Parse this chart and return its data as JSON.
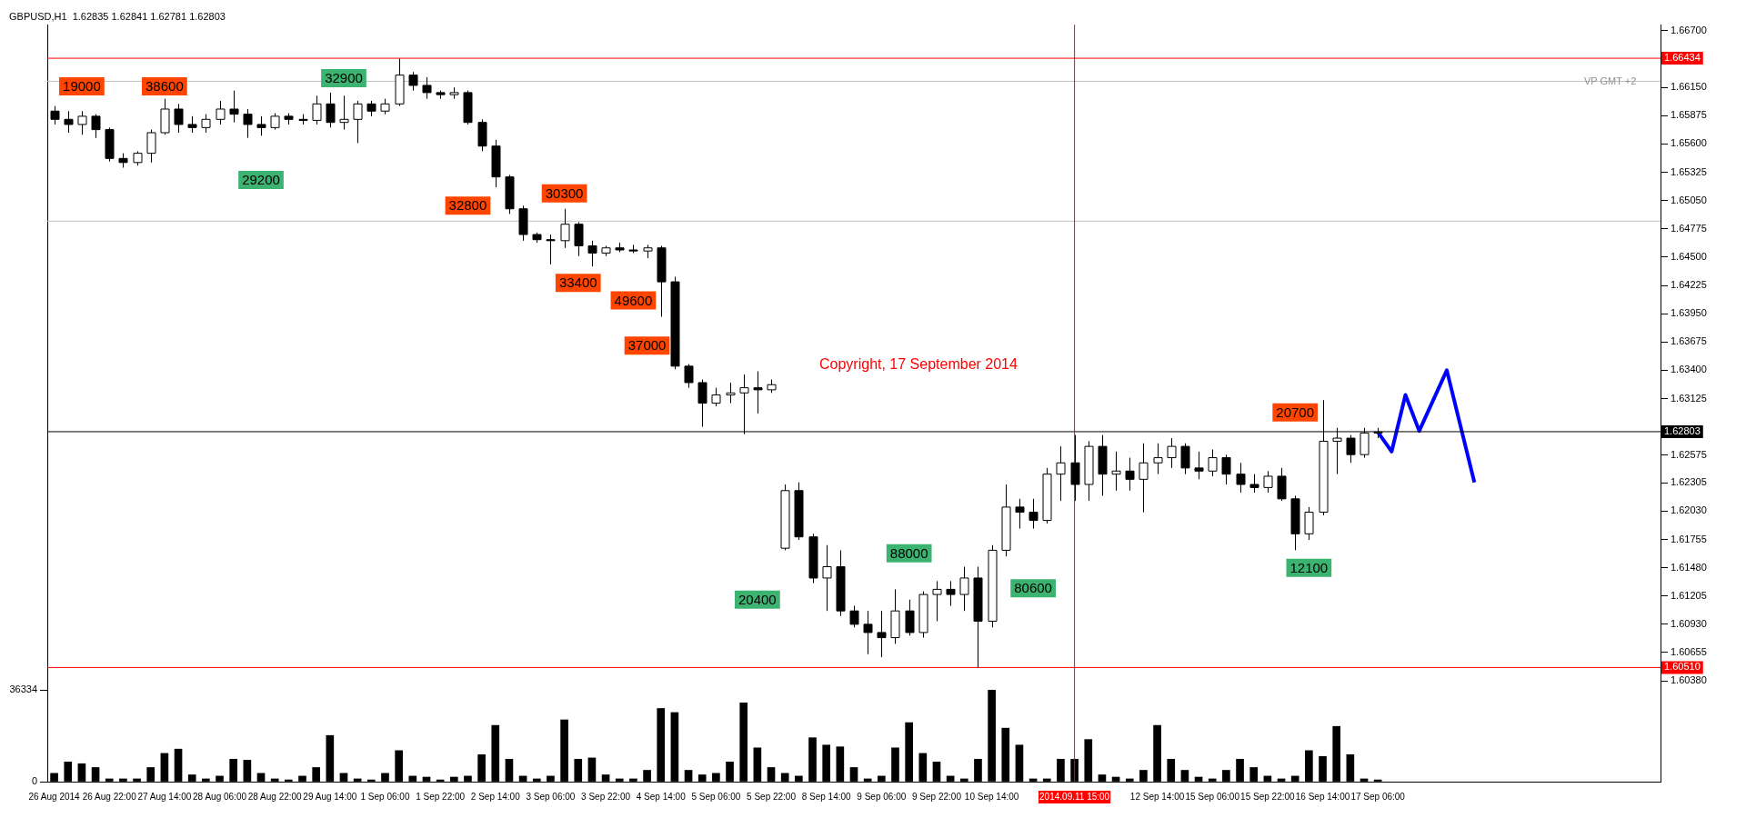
{
  "chart_data": {
    "type": "candlestick",
    "title": "GBPUSD,H1  1.62835 1.62841 1.62781 1.62803",
    "categories": [
      "26 Aug 2014",
      null,
      null,
      null,
      "26 Aug 22:00",
      null,
      null,
      null,
      "27 Aug 14:00",
      null,
      null,
      null,
      "28 Aug 06:00",
      null,
      null,
      null,
      "28 Aug 22:00",
      null,
      null,
      null,
      "29 Aug 14:00",
      null,
      null,
      null,
      "1 Sep 06:00",
      null,
      null,
      null,
      "1 Sep 22:00",
      null,
      null,
      null,
      "2 Sep 14:00",
      null,
      null,
      null,
      "3 Sep 06:00",
      null,
      null,
      null,
      "3 Sep 22:00",
      null,
      null,
      null,
      "4 Sep 14:00",
      null,
      null,
      null,
      "5 Sep 06:00",
      null,
      null,
      null,
      "5 Sep 22:00",
      null,
      null,
      null,
      "8 Sep 14:00",
      null,
      null,
      null,
      "9 Sep 06:00",
      null,
      null,
      null,
      "9 Sep 22:00",
      null,
      null,
      null,
      "10 Sep 14:00",
      null,
      null,
      null,
      null,
      null,
      "2014.09.11 15:00",
      null,
      null,
      null,
      null,
      null,
      "12 Sep 14:00",
      null,
      null,
      null,
      "15 Sep 06:00",
      null,
      null,
      null,
      "15 Sep 22:00",
      null,
      null,
      null,
      "16 Sep 14:00",
      null,
      null,
      null,
      "17 Sep 06:00",
      null,
      null,
      null,
      null,
      null,
      null,
      null,
      null,
      null,
      null,
      null,
      null,
      null,
      null,
      null,
      null,
      null,
      null,
      null,
      null
    ],
    "ohlc": [
      [
        1.6592,
        1.6597,
        1.6579,
        1.6584
      ],
      [
        1.6584,
        1.6592,
        1.6571,
        1.6579
      ],
      [
        1.6579,
        1.6592,
        1.6569,
        1.6587
      ],
      [
        1.6587,
        1.6589,
        1.6566,
        1.6574
      ],
      [
        1.6574,
        1.6576,
        1.6543,
        1.6546
      ],
      [
        1.6546,
        1.6551,
        1.6537,
        1.6542
      ],
      [
        1.6542,
        1.6553,
        1.6539,
        1.6551
      ],
      [
        1.6551,
        1.6574,
        1.6542,
        1.6571
      ],
      [
        1.6571,
        1.6604,
        1.6569,
        1.6594
      ],
      [
        1.6594,
        1.6599,
        1.6571,
        1.6579
      ],
      [
        1.6579,
        1.6587,
        1.6571,
        1.6576
      ],
      [
        1.6576,
        1.6589,
        1.6571,
        1.6584
      ],
      [
        1.6584,
        1.6602,
        1.6579,
        1.6594
      ],
      [
        1.6594,
        1.6612,
        1.6581,
        1.6589
      ],
      [
        1.6589,
        1.6594,
        1.6566,
        1.6579
      ],
      [
        1.6579,
        1.6587,
        1.6568,
        1.6576
      ],
      [
        1.6576,
        1.659,
        1.6574,
        1.6587
      ],
      [
        1.6587,
        1.659,
        1.6579,
        1.6584
      ],
      [
        1.6584,
        1.6589,
        1.6579,
        1.6583
      ],
      [
        1.6583,
        1.6607,
        1.6579,
        1.6599
      ],
      [
        1.6599,
        1.661,
        1.6576,
        1.6581
      ],
      [
        1.6581,
        1.6607,
        1.6574,
        1.6584
      ],
      [
        1.6584,
        1.6602,
        1.6561,
        1.6599
      ],
      [
        1.6599,
        1.6602,
        1.6587,
        1.6592
      ],
      [
        1.6592,
        1.6604,
        1.6589,
        1.6599
      ],
      [
        1.6599,
        1.6643,
        1.6597,
        1.6627
      ],
      [
        1.6627,
        1.663,
        1.6612,
        1.6617
      ],
      [
        1.6617,
        1.6625,
        1.6604,
        1.661
      ],
      [
        1.661,
        1.6612,
        1.6604,
        1.6608
      ],
      [
        1.6608,
        1.6615,
        1.6604,
        1.661
      ],
      [
        1.661,
        1.6612,
        1.6579,
        1.6581
      ],
      [
        1.6581,
        1.6584,
        1.6553,
        1.6558
      ],
      [
        1.6558,
        1.6564,
        1.6518,
        1.6528
      ],
      [
        1.6528,
        1.653,
        1.6492,
        1.6497
      ],
      [
        1.6497,
        1.65,
        1.6466,
        1.6472
      ],
      [
        1.6472,
        1.6474,
        1.6464,
        1.6467
      ],
      [
        1.6467,
        1.6472,
        1.6443,
        1.6466
      ],
      [
        1.6466,
        1.6497,
        1.6459,
        1.6482
      ],
      [
        1.6482,
        1.6484,
        1.6451,
        1.6461
      ],
      [
        1.6461,
        1.6466,
        1.6441,
        1.6454
      ],
      [
        1.6454,
        1.6461,
        1.6451,
        1.6459
      ],
      [
        1.6459,
        1.6464,
        1.6455,
        1.6457
      ],
      [
        1.6457,
        1.6462,
        1.6454,
        1.6456
      ],
      [
        1.6456,
        1.6462,
        1.6449,
        1.6459
      ],
      [
        1.6459,
        1.6461,
        1.6392,
        1.6426
      ],
      [
        1.6426,
        1.6431,
        1.6341,
        1.6344
      ],
      [
        1.6344,
        1.6346,
        1.6323,
        1.6328
      ],
      [
        1.6328,
        1.6331,
        1.6285,
        1.6308
      ],
      [
        1.6308,
        1.6323,
        1.6305,
        1.6316
      ],
      [
        1.6316,
        1.6328,
        1.6308,
        1.6318
      ],
      [
        1.6318,
        1.6336,
        1.6278,
        1.6323
      ],
      [
        1.6323,
        1.6339,
        1.6298,
        1.6321
      ],
      [
        1.6321,
        1.6331,
        1.6318,
        1.6326
      ],
      [
        1.6167,
        1.6229,
        1.6165,
        1.6223
      ],
      [
        1.6223,
        1.6231,
        1.6175,
        1.6178
      ],
      [
        1.6178,
        1.6181,
        1.6133,
        1.6138
      ],
      [
        1.6138,
        1.617,
        1.6106,
        1.6149
      ],
      [
        1.6149,
        1.6165,
        1.6101,
        1.6106
      ],
      [
        1.6106,
        1.6111,
        1.609,
        1.6093
      ],
      [
        1.6093,
        1.6106,
        1.6064,
        1.6085
      ],
      [
        1.6085,
        1.6106,
        1.6061,
        1.608
      ],
      [
        1.608,
        1.6127,
        1.6074,
        1.6106
      ],
      [
        1.6106,
        1.6117,
        1.6082,
        1.6085
      ],
      [
        1.6085,
        1.6125,
        1.608,
        1.6122
      ],
      [
        1.6122,
        1.6135,
        1.6096,
        1.6127
      ],
      [
        1.6127,
        1.6135,
        1.6111,
        1.6122
      ],
      [
        1.6122,
        1.6149,
        1.6106,
        1.6138
      ],
      [
        1.6138,
        1.6149,
        1.6051,
        1.6096
      ],
      [
        1.6096,
        1.617,
        1.609,
        1.6165
      ],
      [
        1.6165,
        1.6229,
        1.6159,
        1.6207
      ],
      [
        1.6207,
        1.6215,
        1.6186,
        1.6202
      ],
      [
        1.6202,
        1.6215,
        1.6186,
        1.6194
      ],
      [
        1.6194,
        1.6245,
        1.6191,
        1.6239
      ],
      [
        1.6239,
        1.6266,
        1.6213,
        1.625
      ],
      [
        1.625,
        1.6277,
        1.6213,
        1.6229
      ],
      [
        1.6229,
        1.6271,
        1.6213,
        1.6266
      ],
      [
        1.6266,
        1.6277,
        1.6218,
        1.6239
      ],
      [
        1.6239,
        1.6261,
        1.6223,
        1.6242
      ],
      [
        1.6242,
        1.6255,
        1.6223,
        1.6234
      ],
      [
        1.6234,
        1.6269,
        1.6202,
        1.625
      ],
      [
        1.625,
        1.6269,
        1.6239,
        1.6255
      ],
      [
        1.6255,
        1.6274,
        1.6245,
        1.6266
      ],
      [
        1.6266,
        1.6269,
        1.6239,
        1.6245
      ],
      [
        1.6245,
        1.6261,
        1.6234,
        1.6242
      ],
      [
        1.6242,
        1.6263,
        1.6237,
        1.6255
      ],
      [
        1.6255,
        1.6258,
        1.6229,
        1.6239
      ],
      [
        1.6239,
        1.625,
        1.6221,
        1.6229
      ],
      [
        1.6229,
        1.6239,
        1.6221,
        1.6226
      ],
      [
        1.6226,
        1.6242,
        1.6221,
        1.6237
      ],
      [
        1.6237,
        1.6245,
        1.6213,
        1.6215
      ],
      [
        1.6215,
        1.6218,
        1.6165,
        1.6181
      ],
      [
        1.6181,
        1.6207,
        1.6175,
        1.6202
      ],
      [
        1.6202,
        1.6311,
        1.6199,
        1.6271
      ],
      [
        1.6271,
        1.6284,
        1.6239,
        1.6274
      ],
      [
        1.6274,
        1.6277,
        1.625,
        1.6258
      ],
      [
        1.6258,
        1.6284,
        1.6255,
        1.6279
      ],
      [
        1.6279,
        1.6284,
        1.6274,
        1.628
      ],
      null,
      null,
      null,
      null,
      null,
      null,
      null,
      null,
      null,
      null,
      null,
      null,
      null,
      null,
      null,
      null,
      null,
      null,
      null,
      null
    ],
    "series": [
      {
        "type": "line",
        "color": "#0000ff",
        "values": [
          null,
          null,
          null,
          null,
          null,
          null,
          null,
          null,
          null,
          null,
          null,
          null,
          null,
          null,
          null,
          null,
          null,
          null,
          null,
          null,
          null,
          null,
          null,
          null,
          null,
          null,
          null,
          null,
          null,
          null,
          null,
          null,
          null,
          null,
          null,
          null,
          null,
          null,
          null,
          null,
          null,
          null,
          null,
          null,
          null,
          null,
          null,
          null,
          null,
          null,
          null,
          null,
          null,
          null,
          null,
          null,
          null,
          null,
          null,
          null,
          null,
          null,
          null,
          null,
          null,
          null,
          null,
          null,
          null,
          null,
          null,
          null,
          null,
          null,
          null,
          null,
          null,
          null,
          null,
          null,
          null,
          null,
          null,
          null,
          null,
          null,
          null,
          null,
          null,
          null,
          null,
          null,
          null,
          null,
          null,
          null,
          1.628,
          1.6261,
          1.6316,
          1.6281,
          null,
          1.634,
          null,
          1.6231,
          null,
          null,
          null,
          null,
          null,
          null,
          null,
          null,
          null,
          null,
          null,
          null,
          null
        ]
      },
      {
        "type": "bar",
        "axis": "y2",
        "color": "#000000",
        "values": [
          3300,
          7800,
          7100,
          5600,
          1100,
          1100,
          1100,
          5600,
          11200,
          12900,
          2700,
          1100,
          2200,
          8900,
          8500,
          3300,
          1100,
          700,
          2200,
          5600,
          18300,
          3300,
          1100,
          700,
          3300,
          12300,
          2200,
          1800,
          700,
          1800,
          2200,
          10700,
          22300,
          8900,
          2200,
          1100,
          2200,
          24500,
          8900,
          9400,
          2700,
          1100,
          1100,
          4500,
          29000,
          27400,
          4500,
          2700,
          3300,
          7800,
          31200,
          13400,
          5600,
          3300,
          2200,
          17400,
          14500,
          13800,
          5600,
          1100,
          2200,
          13400,
          23400,
          11200,
          7800,
          2200,
          1100,
          8900,
          36300,
          21200,
          14500,
          1100,
          1100,
          8900,
          8900,
          16700,
          2700,
          1800,
          1100,
          4500,
          22300,
          8900,
          4500,
          1800,
          1100,
          4500,
          8900,
          5600,
          2200,
          1100,
          2200,
          12300,
          10000,
          21900,
          10700,
          1100,
          700,
          null,
          null,
          null,
          null,
          null,
          null,
          null,
          null,
          null,
          null,
          null,
          null,
          null,
          null,
          null,
          null,
          null,
          null,
          null,
          null
        ]
      }
    ],
    "ylim": [
      1.594,
      1.6676
    ],
    "yticks": [
      {
        "value": 1.667,
        "label": "1.66700"
      },
      {
        "value": 1.6615,
        "label": "1.66150"
      },
      {
        "value": 1.65875,
        "label": "1.65875"
      },
      {
        "value": 1.656,
        "label": "1.65600"
      },
      {
        "value": 1.65325,
        "label": "1.65325"
      },
      {
        "value": 1.6505,
        "label": "1.65050"
      },
      {
        "value": 1.64775,
        "label": "1.64775"
      },
      {
        "value": 1.645,
        "label": "1.64500"
      },
      {
        "value": 1.64225,
        "label": "1.64225"
      },
      {
        "value": 1.6395,
        "label": "1.63950"
      },
      {
        "value": 1.63675,
        "label": "1.63675"
      },
      {
        "value": 1.634,
        "label": "1.63400"
      },
      {
        "value": 1.63125,
        "label": "1.63125"
      },
      {
        "value": 1.62575,
        "label": "1.62575"
      },
      {
        "value": 1.62305,
        "label": "1.62305"
      },
      {
        "value": 1.6203,
        "label": "1.62030"
      },
      {
        "value": 1.61755,
        "label": "1.61755"
      },
      {
        "value": 1.6148,
        "label": "1.61480"
      },
      {
        "value": 1.61205,
        "label": "1.61205"
      },
      {
        "value": 1.6093,
        "label": "1.60930"
      },
      {
        "value": 1.60655,
        "label": "1.60655"
      },
      {
        "value": 1.6038,
        "label": "1.60380"
      }
    ],
    "y2lim": [
      0,
      300000
    ],
    "y2ticks": [
      0,
      36334
    ],
    "ref_lines": [
      {
        "axis": "y",
        "value": 1.66434,
        "label": "1.66434",
        "color": "#ff0000"
      },
      {
        "axis": "y",
        "value": 1.6051,
        "label": "1.60510",
        "color": "#ff0000"
      },
      {
        "axis": "y",
        "value": 1.62803,
        "label": "1.62803",
        "color": "#000000"
      },
      {
        "axis": "y",
        "value": 1.6621,
        "color": "#c0c0c0"
      },
      {
        "axis": "y",
        "value": 1.6485,
        "color": "#c0c0c0"
      },
      {
        "axis": "x",
        "value": "2014.09.11 15:00",
        "color": "#ff0000"
      }
    ],
    "annotations": [
      "19000",
      "38600",
      "32900",
      "29200",
      "32800",
      "30300",
      "33400",
      "49600",
      "37000",
      "20400",
      "88000",
      "80600",
      "20700",
      "12100",
      "Copyright, 17 September 2014",
      "VP GMT +2"
    ],
    "grid": false,
    "legend": false
  }
}
